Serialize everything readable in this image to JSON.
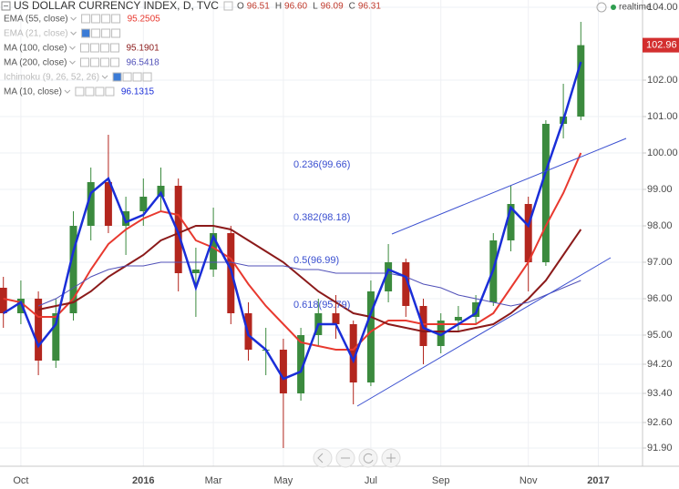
{
  "chart_data": {
    "type": "candlestick",
    "title": "US DOLLAR CURRENCY INDEX, D, TVC",
    "ohlc_header": [
      {
        "label": "O",
        "value": "96.51"
      },
      {
        "label": "H",
        "value": "96.60"
      },
      {
        "label": "L",
        "value": "96.09"
      },
      {
        "label": "C",
        "value": "96.31"
      }
    ],
    "status": "realtime",
    "categories": [
      null,
      "Oct",
      null,
      null,
      null,
      null,
      null,
      null,
      "2016",
      null,
      null,
      null,
      "Mar",
      null,
      null,
      null,
      "May",
      null,
      null,
      null,
      null,
      "Jul",
      null,
      null,
      null,
      "Sep",
      null,
      null,
      null,
      null,
      "Nov",
      null,
      null,
      null,
      "2017"
    ],
    "open": [
      96.3,
      95.6,
      96.0,
      94.3,
      95.6,
      98.0,
      99.2,
      98.0,
      98.4,
      98.8,
      99.1,
      96.7,
      96.8,
      97.8,
      95.6,
      94.6,
      94.6,
      93.4,
      95.0,
      95.6,
      95.3,
      93.7,
      96.2,
      97.0,
      95.8,
      94.7,
      95.4,
      95.5,
      95.9,
      97.6,
      98.6,
      97.0,
      100.8,
      101.0,
      null
    ],
    "high": [
      96.6,
      96.5,
      96.2,
      96.0,
      98.4,
      99.6,
      100.5,
      98.8,
      99.3,
      99.6,
      99.3,
      97.4,
      98.5,
      98.0,
      95.9,
      95.2,
      94.9,
      95.2,
      96.0,
      96.1,
      95.4,
      96.5,
      97.5,
      97.1,
      96.0,
      95.6,
      95.8,
      96.1,
      97.8,
      99.1,
      98.8,
      100.9,
      101.9,
      103.6,
      null
    ],
    "low": [
      95.2,
      95.3,
      93.9,
      94.1,
      95.4,
      97.6,
      97.8,
      97.2,
      98.0,
      98.4,
      96.2,
      95.5,
      96.6,
      95.3,
      94.3,
      93.9,
      91.9,
      93.2,
      94.7,
      94.9,
      93.1,
      93.6,
      95.9,
      95.5,
      94.2,
      94.5,
      95.1,
      95.3,
      95.8,
      97.3,
      96.2,
      96.9,
      100.4,
      100.9,
      null
    ],
    "close": [
      95.6,
      96.0,
      94.3,
      95.6,
      98.0,
      99.2,
      98.0,
      98.4,
      98.8,
      99.1,
      96.7,
      96.8,
      97.8,
      95.6,
      94.6,
      94.6,
      93.4,
      95.0,
      95.6,
      95.3,
      93.7,
      96.2,
      97.0,
      95.8,
      94.7,
      95.4,
      95.5,
      95.9,
      97.6,
      98.6,
      97.0,
      100.8,
      101.0,
      102.96,
      null
    ],
    "up_color": "#3b8a3e",
    "down_color": "#b3261e",
    "series": [
      {
        "name": "EMA (55, close)",
        "color": "#e8392f",
        "visible": true,
        "last": "95.2505",
        "width": 2,
        "values": [
          96.0,
          95.9,
          95.5,
          95.5,
          96.0,
          96.8,
          97.5,
          97.9,
          98.2,
          98.4,
          98.3,
          97.6,
          97.4,
          97.1,
          96.4,
          95.8,
          95.3,
          94.8,
          94.7,
          94.6,
          94.6,
          95.1,
          95.4,
          95.4,
          95.3,
          95.3,
          95.3,
          95.3,
          95.6,
          96.3,
          97.0,
          98.0,
          98.9,
          100.0,
          null
        ]
      },
      {
        "name": "EMA (21, close)",
        "color": "#bbbbbb",
        "visible": false
      },
      {
        "name": "MA (100, close)",
        "color": "#8b1a1a",
        "visible": true,
        "last": "95.1901",
        "width": 2,
        "values": [
          null,
          null,
          95.7,
          95.8,
          95.9,
          96.2,
          96.6,
          96.9,
          97.2,
          97.6,
          97.8,
          98.0,
          98.0,
          97.9,
          97.6,
          97.3,
          97.0,
          96.6,
          96.2,
          95.9,
          95.6,
          95.5,
          95.3,
          95.2,
          95.1,
          95.1,
          95.1,
          95.2,
          95.3,
          95.6,
          96.0,
          96.5,
          97.2,
          97.9,
          null
        ]
      },
      {
        "name": "MA (200, close)",
        "color": "#5050b8",
        "visible": true,
        "last": "96.5418",
        "width": 1,
        "values": [
          null,
          null,
          95.8,
          96.0,
          96.3,
          96.6,
          96.8,
          96.9,
          96.9,
          97.0,
          97.0,
          97.0,
          97.0,
          97.0,
          96.9,
          96.9,
          96.9,
          96.8,
          96.8,
          96.7,
          96.7,
          96.7,
          96.7,
          96.6,
          96.4,
          96.3,
          96.1,
          96.0,
          95.9,
          95.8,
          95.9,
          96.1,
          96.3,
          96.5,
          null
        ]
      },
      {
        "name": "Ichimoku (9, 26, 52, 26)",
        "color": "#bbbbbb",
        "visible": false
      },
      {
        "name": "MA (10, close)",
        "color": "#1a2ed8",
        "visible": true,
        "last": "96.1315",
        "width": 2.5,
        "values": [
          95.6,
          95.9,
          94.7,
          95.3,
          97.3,
          98.9,
          99.3,
          98.1,
          98.3,
          98.9,
          97.8,
          96.3,
          97.7,
          96.8,
          95.0,
          94.6,
          93.8,
          94.0,
          95.3,
          95.3,
          94.3,
          95.6,
          96.8,
          96.6,
          95.2,
          95.0,
          95.3,
          95.6,
          96.8,
          98.5,
          98.0,
          99.5,
          100.9,
          102.5,
          null
        ]
      }
    ],
    "annotations": [
      "0.236(99.66)",
      "0.382(98.18)",
      "0.5(96.99)",
      "0.618(95.79)"
    ],
    "last_price": 102.96,
    "ylim": [
      91.4,
      104.2
    ],
    "yticks": [
      {
        "value": 104,
        "label": "104.00"
      },
      {
        "value": 102,
        "label": "102.00"
      },
      {
        "value": 101,
        "label": "101.00"
      },
      {
        "value": 100,
        "label": "100.00"
      },
      {
        "value": 99,
        "label": "99.00"
      },
      {
        "value": 98,
        "label": "98.00"
      },
      {
        "value": 97,
        "label": "97.00"
      },
      {
        "value": 96,
        "label": "96.00"
      },
      {
        "value": 95,
        "label": "95.00"
      },
      {
        "value": 94.2,
        "label": "94.20"
      },
      {
        "value": 93.4,
        "label": "93.40"
      },
      {
        "value": 92.6,
        "label": "92.60"
      },
      {
        "value": 91.9,
        "label": "91.90"
      }
    ],
    "grid": true
  }
}
